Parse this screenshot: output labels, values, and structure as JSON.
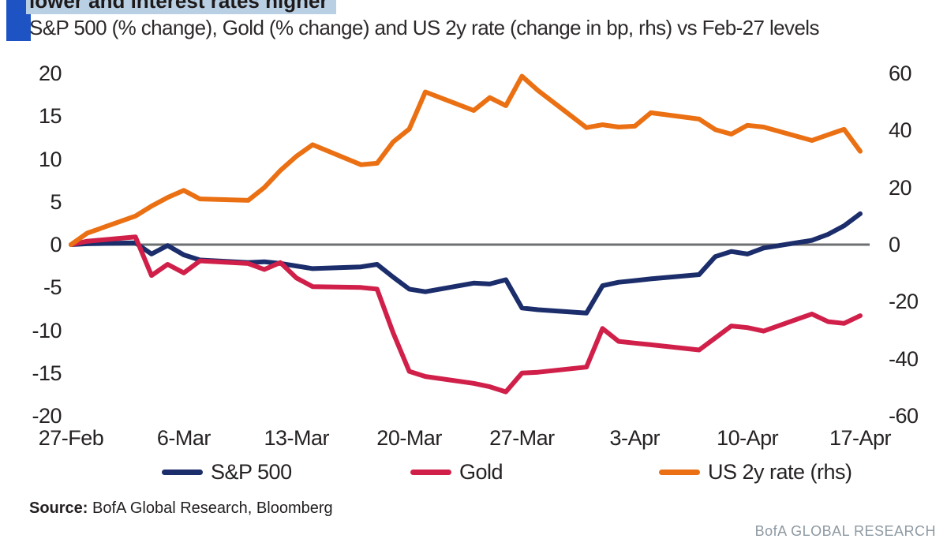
{
  "header": {
    "title_visible": "lower and interest rates higher",
    "subtitle": "S&P 500 (% change), Gold (% change) and US 2y rate (change in bp, rhs) vs Feb-27 levels",
    "highlight_color": "#b9cfe3",
    "accent_bar_color": "#1e53c4"
  },
  "chart_data": {
    "type": "line",
    "title": "lower and interest rates higher",
    "subtitle": "S&P 500 (% change), Gold (% change) and US 2y rate (change in bp, rhs) vs Feb-27 levels",
    "grid": false,
    "legend_position": "bottom",
    "zero_line_color": "#6e6f72",
    "x_tick_labels": [
      "27-Feb",
      "6-Mar",
      "13-Mar",
      "20-Mar",
      "27-Mar",
      "3-Apr",
      "10-Apr",
      "17-Apr"
    ],
    "x_tick_day_offsets": [
      0,
      7,
      14,
      21,
      28,
      35,
      42,
      49
    ],
    "left_axis": {
      "label": "% change",
      "ticks": [
        20,
        15,
        10,
        5,
        0,
        -5,
        -10,
        -15,
        -20
      ],
      "range": [
        -20,
        20
      ]
    },
    "right_axis": {
      "label": "change in bp",
      "ticks": [
        60,
        40,
        20,
        0,
        -20,
        -40,
        -60
      ],
      "range": [
        -60,
        60
      ]
    },
    "dates": [
      "27-Feb",
      "28-Feb",
      "3-Mar",
      "4-Mar",
      "5-Mar",
      "6-Mar",
      "7-Mar",
      "10-Mar",
      "11-Mar",
      "12-Mar",
      "13-Mar",
      "14-Mar",
      "17-Mar",
      "18-Mar",
      "19-Mar",
      "20-Mar",
      "21-Mar",
      "24-Mar",
      "25-Mar",
      "26-Mar",
      "27-Mar",
      "28-Mar",
      "31-Mar",
      "1-Apr",
      "2-Apr",
      "3-Apr",
      "4-Apr",
      "7-Apr",
      "8-Apr",
      "9-Apr",
      "10-Apr",
      "11-Apr",
      "14-Apr",
      "15-Apr",
      "16-Apr",
      "17-Apr"
    ],
    "day_offsets": [
      0,
      1,
      4,
      5,
      6,
      7,
      8,
      11,
      12,
      13,
      14,
      15,
      18,
      19,
      20,
      21,
      22,
      25,
      26,
      27,
      28,
      29,
      32,
      33,
      34,
      35,
      36,
      39,
      40,
      41,
      42,
      43,
      46,
      47,
      48,
      49
    ],
    "series": [
      {
        "name": "S&P 500",
        "axis": "left",
        "unit": "%",
        "color": "#1b2d6b",
        "values": [
          0,
          0.1,
          0.2,
          -1.1,
          -0.1,
          -1.2,
          -1.8,
          -2.1,
          -2.0,
          -2.2,
          -2.5,
          -2.8,
          -2.6,
          -2.3,
          -3.8,
          -5.2,
          -5.5,
          -4.5,
          -4.6,
          -4.1,
          -7.4,
          -7.6,
          -8.0,
          -4.8,
          -4.4,
          -4.2,
          -4.0,
          -3.5,
          -1.4,
          -0.8,
          -1.1,
          -0.4,
          0.5,
          1.2,
          2.2,
          3.6
        ]
      },
      {
        "name": "Gold",
        "axis": "left",
        "unit": "%",
        "color": "#d0204a",
        "values": [
          0,
          0.4,
          0.9,
          -3.6,
          -2.3,
          -3.3,
          -1.9,
          -2.2,
          -2.9,
          -2.1,
          -3.9,
          -4.9,
          -5.0,
          -5.2,
          -10.3,
          -14.8,
          -15.4,
          -16.2,
          -16.6,
          -17.2,
          -15.0,
          -14.9,
          -14.3,
          -9.8,
          -11.3,
          -11.5,
          -11.7,
          -12.3,
          -10.9,
          -9.5,
          -9.7,
          -10.1,
          -8.1,
          -9.0,
          -9.2,
          -8.3
        ]
      },
      {
        "name": "US 2y rate (rhs)",
        "axis": "right",
        "unit": "bp",
        "color": "#ea7013",
        "values": [
          0,
          4,
          10,
          13.5,
          16.5,
          19,
          16,
          15.5,
          20,
          26,
          31,
          35,
          28,
          28.5,
          36,
          40.5,
          53.5,
          47,
          51.5,
          48.7,
          59,
          54,
          41,
          42,
          41.2,
          41.5,
          46.2,
          44,
          40.3,
          38.7,
          41.8,
          41.2,
          36.5,
          38.5,
          40.4,
          32.7
        ]
      }
    ]
  },
  "legend": {
    "items": [
      {
        "label": "S&P 500",
        "color": "#1b2d6b"
      },
      {
        "label": "Gold",
        "color": "#d0204a"
      },
      {
        "label": "US 2y rate (rhs)",
        "color": "#ea7013"
      }
    ]
  },
  "source": {
    "label": "Source:",
    "text": " BofA Global Research, Bloomberg"
  },
  "footer": {
    "brand": "BofA GLOBAL RESEARCH"
  }
}
